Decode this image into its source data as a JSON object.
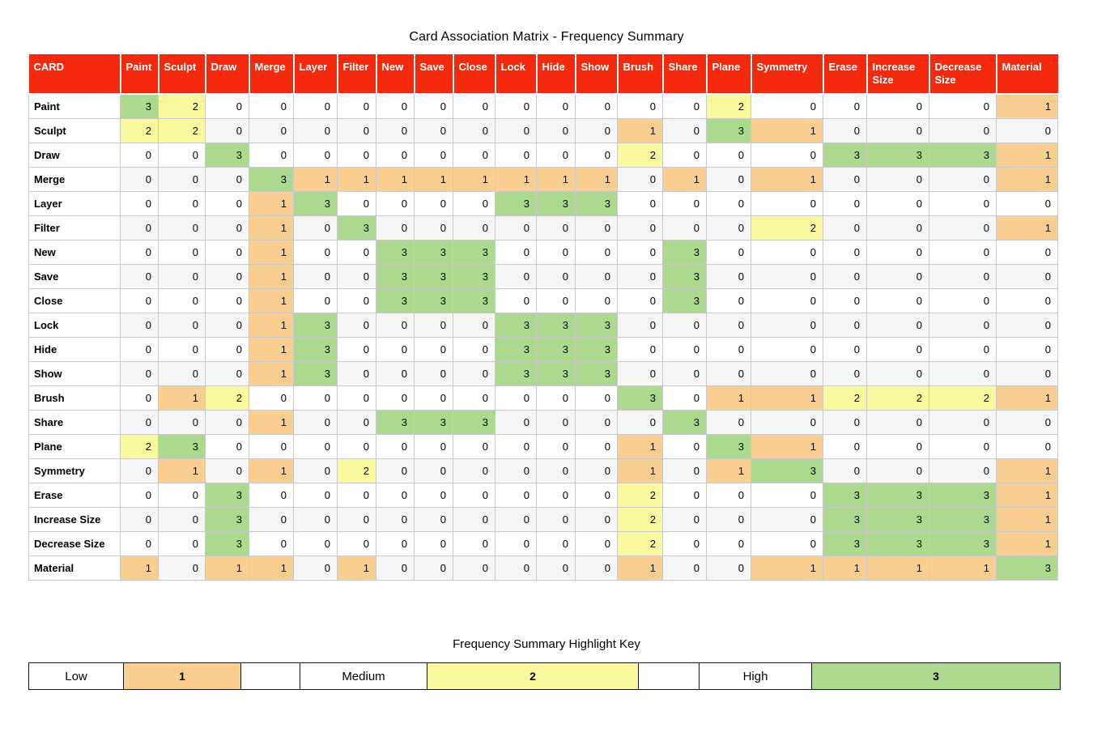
{
  "title": "Card Association Matrix - Frequency Summary",
  "matrix": {
    "corner_header": "CARD",
    "columns": [
      "Paint",
      "Sculpt",
      "Draw",
      "Merge",
      "Layer",
      "Filter",
      "New",
      "Save",
      "Close",
      "Lock",
      "Hide",
      "Show",
      "Brush",
      "Share",
      "Plane",
      "Symmetry",
      "Erase",
      "Increase Size",
      "Decrease Size",
      "Material"
    ],
    "rows": [
      {
        "label": "Paint",
        "values": [
          3,
          2,
          0,
          0,
          0,
          0,
          0,
          0,
          0,
          0,
          0,
          0,
          0,
          0,
          2,
          0,
          0,
          0,
          0,
          1
        ]
      },
      {
        "label": "Sculpt",
        "values": [
          2,
          2,
          0,
          0,
          0,
          0,
          0,
          0,
          0,
          0,
          0,
          0,
          1,
          0,
          3,
          1,
          0,
          0,
          0,
          0
        ]
      },
      {
        "label": "Draw",
        "values": [
          0,
          0,
          3,
          0,
          0,
          0,
          0,
          0,
          0,
          0,
          0,
          0,
          2,
          0,
          0,
          0,
          3,
          3,
          3,
          1
        ]
      },
      {
        "label": "Merge",
        "values": [
          0,
          0,
          0,
          3,
          1,
          1,
          1,
          1,
          1,
          1,
          1,
          1,
          0,
          1,
          0,
          1,
          0,
          0,
          0,
          1
        ]
      },
      {
        "label": "Layer",
        "values": [
          0,
          0,
          0,
          1,
          3,
          0,
          0,
          0,
          0,
          3,
          3,
          3,
          0,
          0,
          0,
          0,
          0,
          0,
          0,
          0
        ]
      },
      {
        "label": "Filter",
        "values": [
          0,
          0,
          0,
          1,
          0,
          3,
          0,
          0,
          0,
          0,
          0,
          0,
          0,
          0,
          0,
          2,
          0,
          0,
          0,
          1
        ]
      },
      {
        "label": "New",
        "values": [
          0,
          0,
          0,
          1,
          0,
          0,
          3,
          3,
          3,
          0,
          0,
          0,
          0,
          3,
          0,
          0,
          0,
          0,
          0,
          0
        ]
      },
      {
        "label": "Save",
        "values": [
          0,
          0,
          0,
          1,
          0,
          0,
          3,
          3,
          3,
          0,
          0,
          0,
          0,
          3,
          0,
          0,
          0,
          0,
          0,
          0
        ]
      },
      {
        "label": "Close",
        "values": [
          0,
          0,
          0,
          1,
          0,
          0,
          3,
          3,
          3,
          0,
          0,
          0,
          0,
          3,
          0,
          0,
          0,
          0,
          0,
          0
        ]
      },
      {
        "label": "Lock",
        "values": [
          0,
          0,
          0,
          1,
          3,
          0,
          0,
          0,
          0,
          3,
          3,
          3,
          0,
          0,
          0,
          0,
          0,
          0,
          0,
          0
        ]
      },
      {
        "label": "Hide",
        "values": [
          0,
          0,
          0,
          1,
          3,
          0,
          0,
          0,
          0,
          3,
          3,
          3,
          0,
          0,
          0,
          0,
          0,
          0,
          0,
          0
        ]
      },
      {
        "label": "Show",
        "values": [
          0,
          0,
          0,
          1,
          3,
          0,
          0,
          0,
          0,
          3,
          3,
          3,
          0,
          0,
          0,
          0,
          0,
          0,
          0,
          0
        ]
      },
      {
        "label": "Brush",
        "values": [
          0,
          1,
          2,
          0,
          0,
          0,
          0,
          0,
          0,
          0,
          0,
          0,
          3,
          0,
          1,
          1,
          2,
          2,
          2,
          1
        ]
      },
      {
        "label": "Share",
        "values": [
          0,
          0,
          0,
          1,
          0,
          0,
          3,
          3,
          3,
          0,
          0,
          0,
          0,
          3,
          0,
          0,
          0,
          0,
          0,
          0
        ]
      },
      {
        "label": "Plane",
        "values": [
          2,
          3,
          0,
          0,
          0,
          0,
          0,
          0,
          0,
          0,
          0,
          0,
          1,
          0,
          3,
          1,
          0,
          0,
          0,
          0
        ]
      },
      {
        "label": "Symmetry",
        "values": [
          0,
          1,
          0,
          1,
          0,
          2,
          0,
          0,
          0,
          0,
          0,
          0,
          1,
          0,
          1,
          3,
          0,
          0,
          0,
          1
        ]
      },
      {
        "label": "Erase",
        "values": [
          0,
          0,
          3,
          0,
          0,
          0,
          0,
          0,
          0,
          0,
          0,
          0,
          2,
          0,
          0,
          0,
          3,
          3,
          3,
          1
        ]
      },
      {
        "label": "Increase Size",
        "values": [
          0,
          0,
          3,
          0,
          0,
          0,
          0,
          0,
          0,
          0,
          0,
          0,
          2,
          0,
          0,
          0,
          3,
          3,
          3,
          1
        ]
      },
      {
        "label": "Decrease Size",
        "values": [
          0,
          0,
          3,
          0,
          0,
          0,
          0,
          0,
          0,
          0,
          0,
          0,
          2,
          0,
          0,
          0,
          3,
          3,
          3,
          1
        ]
      },
      {
        "label": "Material",
        "values": [
          1,
          0,
          1,
          1,
          0,
          1,
          0,
          0,
          0,
          0,
          0,
          0,
          1,
          0,
          0,
          1,
          1,
          1,
          1,
          3
        ]
      }
    ]
  },
  "legend": {
    "title": "Frequency Summary Highlight Key",
    "items": [
      {
        "label": "Low",
        "value": "1",
        "level": "low"
      },
      {
        "label": "Medium",
        "value": "2",
        "level": "medium"
      },
      {
        "label": "High",
        "value": "3",
        "level": "high"
      }
    ]
  },
  "colors": {
    "header_bg": "#F4290D",
    "low": "#FACD91",
    "medium": "#FBF99E",
    "high": "#ABD98E",
    "stripe": "#F6F6F6",
    "grid": "#C9C9C9"
  }
}
